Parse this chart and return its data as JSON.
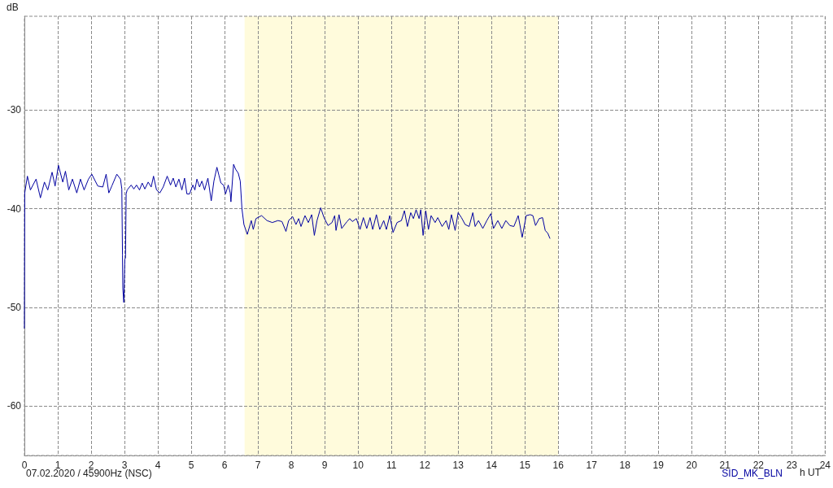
{
  "chart_data": {
    "type": "line",
    "xlabel": "h UT",
    "ylabel": "dB",
    "annotations": [
      "07.02.2020 / 45900Hz (NSC)"
    ],
    "xlim": [
      0,
      24
    ],
    "xticks": [
      0,
      1,
      2,
      3,
      4,
      5,
      6,
      7,
      8,
      9,
      10,
      11,
      12,
      13,
      14,
      15,
      16,
      17,
      18,
      19,
      20,
      21,
      22,
      23,
      24
    ],
    "ylim": [
      -65,
      -20.5
    ],
    "yticks": [
      -60,
      -50,
      -40,
      -30
    ],
    "grid": true,
    "legend": "bottom right",
    "marker": "none",
    "bands": [
      {
        "axis": "x",
        "from": 6.6,
        "to": 16.0,
        "color": "#fffbdc"
      }
    ],
    "x": [
      0,
      0.01,
      0.02,
      0.09,
      0.18,
      0.35,
      0.48,
      0.6,
      0.7,
      0.83,
      0.92,
      1.02,
      1.15,
      1.23,
      1.33,
      1.44,
      1.57,
      1.68,
      1.79,
      1.92,
      2.02,
      2.2,
      2.35,
      2.45,
      2.53,
      2.62,
      2.77,
      2.88,
      2.92,
      2.94,
      2.95,
      2.98,
      3.01,
      3.03,
      3.05,
      3.08,
      3.2,
      3.28,
      3.36,
      3.45,
      3.53,
      3.61,
      3.71,
      3.8,
      3.87,
      3.96,
      4.06,
      4.16,
      4.28,
      4.38,
      4.46,
      4.54,
      4.63,
      4.72,
      4.8,
      4.87,
      4.95,
      5.05,
      5.11,
      5.17,
      5.25,
      5.32,
      5.4,
      5.5,
      5.6,
      5.68,
      5.77,
      5.83,
      5.89,
      5.97,
      6.03,
      6.11,
      6.17,
      6.19,
      6.27,
      6.33,
      6.41,
      6.47,
      6.52,
      6.58,
      6.68,
      6.8,
      6.86,
      6.94,
      7.11,
      7.27,
      7.43,
      7.6,
      7.72,
      7.84,
      7.92,
      8.04,
      8.14,
      8.22,
      8.29,
      8.41,
      8.51,
      8.61,
      8.69,
      8.77,
      8.88,
      8.98,
      9.1,
      9.22,
      9.3,
      9.34,
      9.43,
      9.51,
      9.67,
      9.75,
      9.83,
      9.95,
      10.06,
      10.16,
      10.26,
      10.36,
      10.44,
      10.55,
      10.65,
      10.77,
      10.85,
      10.95,
      11.05,
      11.17,
      11.3,
      11.39,
      11.48,
      11.58,
      11.66,
      11.74,
      11.83,
      11.88,
      11.95,
      12.03,
      12.11,
      12.19,
      12.31,
      12.39,
      12.52,
      12.64,
      12.72,
      12.8,
      12.91,
      13.0,
      13.1,
      13.21,
      13.33,
      13.44,
      13.51,
      13.61,
      13.74,
      13.86,
      13.98,
      14.06,
      14.19,
      14.31,
      14.43,
      14.55,
      14.67,
      14.8,
      14.92,
      15.04,
      15.16,
      15.24,
      15.32,
      15.43,
      15.53,
      15.61,
      15.69,
      15.75
    ],
    "series": [
      {
        "name": "SID_MK_BLN",
        "color": "#0000a0",
        "values": [
          -52.1,
          -38.4,
          -38.4,
          -36.7,
          -38.1,
          -37.0,
          -38.9,
          -37.3,
          -38.1,
          -36.3,
          -37.7,
          -35.6,
          -37.3,
          -36.2,
          -38.1,
          -37.0,
          -38.4,
          -37.0,
          -38.1,
          -37.0,
          -36.5,
          -37.7,
          -37.8,
          -36.5,
          -38.4,
          -37.7,
          -36.5,
          -37.0,
          -38.0,
          -44.7,
          -48.1,
          -49.5,
          -45.1,
          -45.0,
          -38.5,
          -38.1,
          -37.6,
          -38.0,
          -37.6,
          -38.1,
          -37.4,
          -38.0,
          -37.3,
          -37.8,
          -36.7,
          -38.1,
          -38.4,
          -37.8,
          -36.7,
          -37.6,
          -36.9,
          -37.8,
          -37.0,
          -38.1,
          -36.9,
          -38.5,
          -38.5,
          -37.6,
          -38.1,
          -37.0,
          -37.8,
          -37.2,
          -38.1,
          -36.9,
          -39.2,
          -37.2,
          -35.8,
          -36.6,
          -37.4,
          -37.6,
          -38.5,
          -37.6,
          -38.4,
          -39.3,
          -35.5,
          -36.0,
          -36.4,
          -37.2,
          -40.0,
          -41.6,
          -42.6,
          -41.2,
          -42.1,
          -41.0,
          -40.7,
          -41.2,
          -41.4,
          -41.2,
          -41.3,
          -42.3,
          -41.2,
          -40.8,
          -41.6,
          -41.0,
          -41.8,
          -40.7,
          -41.4,
          -40.6,
          -42.7,
          -41.2,
          -39.9,
          -40.9,
          -41.7,
          -41.4,
          -40.7,
          -42.2,
          -40.6,
          -42.0,
          -41.3,
          -41.0,
          -41.3,
          -41.0,
          -42.1,
          -40.9,
          -42.0,
          -40.9,
          -42.1,
          -40.6,
          -42.1,
          -41.2,
          -42.1,
          -40.7,
          -42.4,
          -41.4,
          -41.2,
          -40.2,
          -41.8,
          -40.4,
          -41.0,
          -40.1,
          -41.0,
          -40.1,
          -42.7,
          -40.2,
          -42.1,
          -40.7,
          -41.4,
          -40.9,
          -41.8,
          -41.2,
          -42.1,
          -40.6,
          -42.2,
          -40.4,
          -40.9,
          -41.6,
          -41.8,
          -40.4,
          -41.8,
          -41.2,
          -42.0,
          -41.2,
          -40.5,
          -42.0,
          -41.2,
          -42.0,
          -41.2,
          -41.7,
          -41.8,
          -40.7,
          -42.9,
          -40.7,
          -40.6,
          -40.7,
          -41.7,
          -41.0,
          -40.9,
          -42.2,
          -42.5,
          -43.0
        ]
      }
    ]
  }
}
